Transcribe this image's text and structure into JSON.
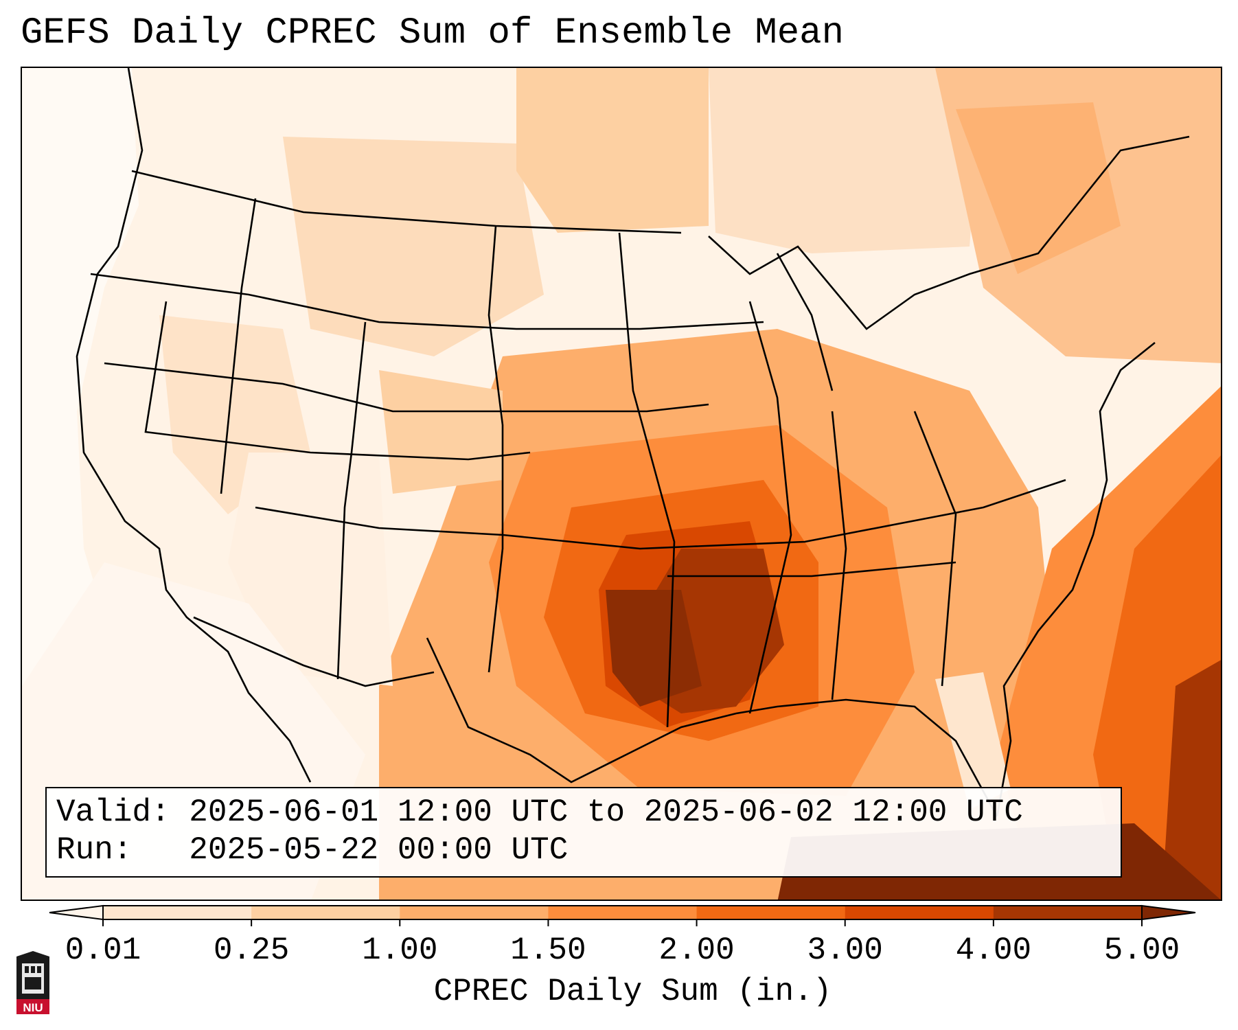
{
  "title": "GEFS Daily CPREC Sum of Ensemble Mean",
  "info": {
    "valid_line": "Valid: 2025-06-01 12:00 UTC to 2025-06-02 12:00 UTC",
    "run_line": "Run:   2025-05-22 00:00 UTC"
  },
  "colorbar": {
    "label": "CPREC Daily Sum (in.)",
    "ticks": [
      "0.01",
      "0.25",
      "1.00",
      "1.50",
      "2.00",
      "3.00",
      "4.00",
      "5.00"
    ],
    "colors": [
      "#fff5eb",
      "#fee6ce",
      "#fdd0a2",
      "#fdae6b",
      "#fd8d3c",
      "#f16913",
      "#d94801",
      "#a63603",
      "#7f2704"
    ],
    "extend": "both"
  },
  "logo": {
    "text": "NIU",
    "colors": {
      "red": "#c8102e",
      "black": "#1a1a1a"
    }
  },
  "map": {
    "projection": "Lambert conformal, CONUS",
    "heaviest_region": "Texas / Arkansas / Louisiana, Gulf Stream offshore"
  }
}
